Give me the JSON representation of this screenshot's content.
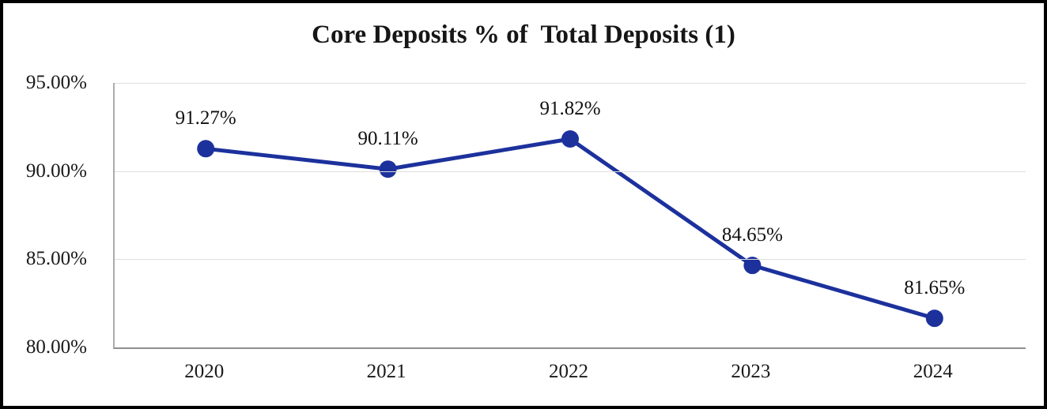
{
  "chart_data": {
    "type": "line",
    "title": "Core Deposits % of  Total Deposits (1)",
    "categories": [
      "2020",
      "2021",
      "2022",
      "2023",
      "2024"
    ],
    "values": [
      91.27,
      90.11,
      91.82,
      84.65,
      81.65
    ],
    "point_labels": [
      "91.27%",
      "90.11%",
      "91.82%",
      "84.65%",
      "81.65%"
    ],
    "y_ticks": [
      "95.00%",
      "90.00%",
      "85.00%",
      "80.00%"
    ],
    "ylim": [
      80,
      95
    ],
    "xlabel": "",
    "ylabel": "",
    "grid": "horizontal",
    "legend": "none",
    "colors": {
      "series": "#1C319C",
      "gridline": "#DEDEDE",
      "axis_line": "#8F8F8F",
      "plot_left_border": "#ADADAD",
      "frame_border": "#000000",
      "background": "#FFFFFF",
      "text": "#1A1A1A"
    }
  }
}
